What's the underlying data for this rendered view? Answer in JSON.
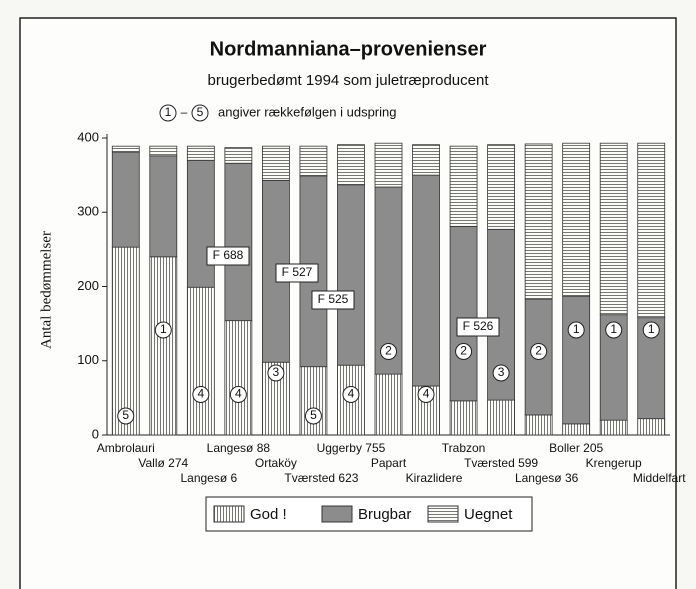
{
  "chart_data": {
    "type": "stacked_bar",
    "title": "Nordmanniana–provenienser",
    "subtitle": "brugerbedømt 1994 som juletræproducent",
    "note": {
      "from": "1",
      "separator": "–",
      "to": "5",
      "text": "angiver rækkefølgen i udspring"
    },
    "y_label": "Antal bedømmelser",
    "categories": [
      "Ambrolauri",
      "Vallø 274",
      "Langesø 6",
      "Langesø 88",
      "Ortaköy",
      "Tværsted 623",
      "Uggerby 755",
      "Papart",
      "Kirazlidere",
      "Trabzon",
      "Tværsted 599",
      "Langesø 36",
      "Boller 205",
      "Krengerup",
      "Middelfart"
    ],
    "series": [
      {
        "name": "God !",
        "color": "#555555",
        "pattern": "vertical",
        "values": [
          253,
          240,
          199,
          154,
          98,
          92,
          94,
          82,
          66,
          46,
          47,
          27,
          15,
          20,
          22
        ]
      },
      {
        "name": "Brugbar",
        "color": "#8c8c8c",
        "pattern": "solid",
        "values": [
          128,
          136,
          171,
          212,
          245,
          257,
          243,
          252,
          284,
          235,
          230,
          156,
          172,
          142,
          136
        ]
      },
      {
        "name": "Uegnet",
        "color": "#555555",
        "pattern": "horizontal",
        "values": [
          8,
          13,
          19,
          21,
          46,
          40,
          54,
          59,
          41,
          108,
          114,
          209,
          206,
          231,
          235
        ]
      }
    ],
    "ranks": [
      "5",
      "1",
      "4",
      "4",
      "3",
      "5",
      "4",
      "2",
      "4",
      "2",
      "3",
      "2",
      "1",
      "1",
      "1"
    ],
    "annotations": [
      "F 688",
      "F 527",
      "F 525",
      "F 526"
    ],
    "ylim": [
      0,
      400
    ],
    "yticks": [
      0,
      100,
      200,
      300,
      400
    ],
    "grid": false,
    "legend": "bottom"
  }
}
